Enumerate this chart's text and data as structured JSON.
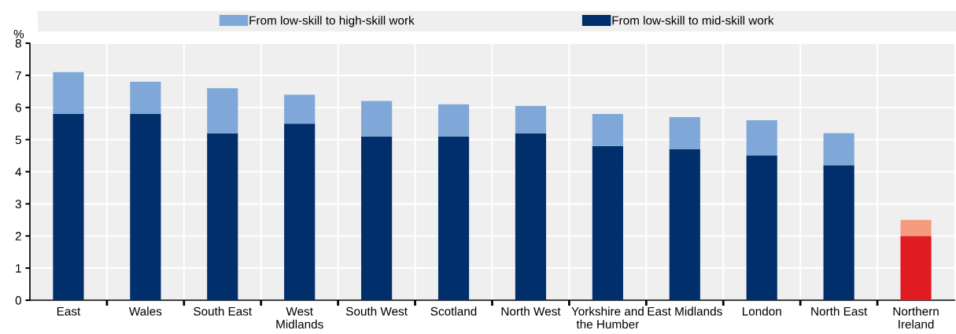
{
  "chart_data": {
    "type": "bar",
    "stacked": true,
    "ylabel": "%",
    "categories": [
      "East",
      "Wales",
      "South East",
      "West\nMidlands",
      "South West",
      "Scotland",
      "North West",
      "Yorkshire and\nthe Humber",
      "East Midlands",
      "London",
      "North East",
      "Northern\nIreland"
    ],
    "series": [
      {
        "name": "From low-skill to mid-skill work",
        "color": "#002f6c",
        "colors": [
          "#002f6c",
          "#002f6c",
          "#002f6c",
          "#002f6c",
          "#002f6c",
          "#002f6c",
          "#002f6c",
          "#002f6c",
          "#002f6c",
          "#002f6c",
          "#002f6c",
          "#e01b22"
        ],
        "values": [
          5.8,
          5.8,
          5.2,
          5.5,
          5.1,
          5.1,
          5.2,
          4.8,
          4.7,
          4.5,
          4.2,
          2.0
        ]
      },
      {
        "name": "From low-skill to high-skill work",
        "color": "#7fa8d9",
        "colors": [
          "#7fa8d9",
          "#7fa8d9",
          "#7fa8d9",
          "#7fa8d9",
          "#7fa8d9",
          "#7fa8d9",
          "#7fa8d9",
          "#7fa8d9",
          "#7fa8d9",
          "#7fa8d9",
          "#7fa8d9",
          "#f59c80"
        ],
        "values": [
          1.3,
          1.0,
          1.4,
          0.9,
          1.1,
          1.0,
          0.85,
          1.0,
          1.0,
          1.1,
          1.0,
          0.5
        ]
      }
    ],
    "ylim": [
      0,
      8
    ],
    "yticks": [
      0,
      1,
      2,
      3,
      4,
      5,
      6,
      7,
      8
    ],
    "grid": true,
    "legend": "top"
  }
}
